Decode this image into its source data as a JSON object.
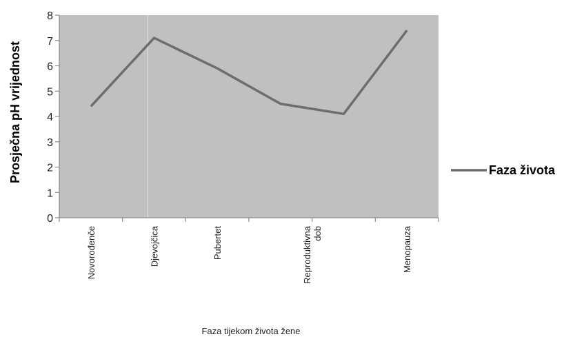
{
  "chart_data": {
    "type": "line",
    "categories": [
      "Novorođenče",
      "Djevojčica",
      "Pubertet",
      "Reproduktivna dob",
      "Menopauza"
    ],
    "category_lines": [
      [
        "Novorođenče"
      ],
      [
        "Djevojčica"
      ],
      [
        "Pubertet"
      ],
      [
        "Reproduktivna",
        "dob"
      ],
      [
        "Menopauza"
      ]
    ],
    "x": [
      0.5,
      1.5,
      2.5,
      4.0,
      5.5
    ],
    "series": [
      {
        "name": "Faza života",
        "x": [
          0.5,
          1.5,
          2.5,
          3.5,
          4.5,
          5.5
        ],
        "values": [
          4.4,
          7.1,
          5.9,
          4.5,
          4.1,
          7.4
        ]
      }
    ],
    "xlabel": "Faza tijekom života žene",
    "ylabel": "Prosječna pH vrijednost",
    "ylim": [
      0,
      8
    ],
    "yticks": [
      0,
      1,
      2,
      3,
      4,
      5,
      6,
      7,
      8
    ],
    "xlim": [
      0,
      6
    ],
    "grid": false,
    "legend": "right",
    "colors": {
      "plot_bg": "#c0c0c0",
      "line": "#6d6d6d",
      "axis": "#8c8c8c"
    }
  }
}
